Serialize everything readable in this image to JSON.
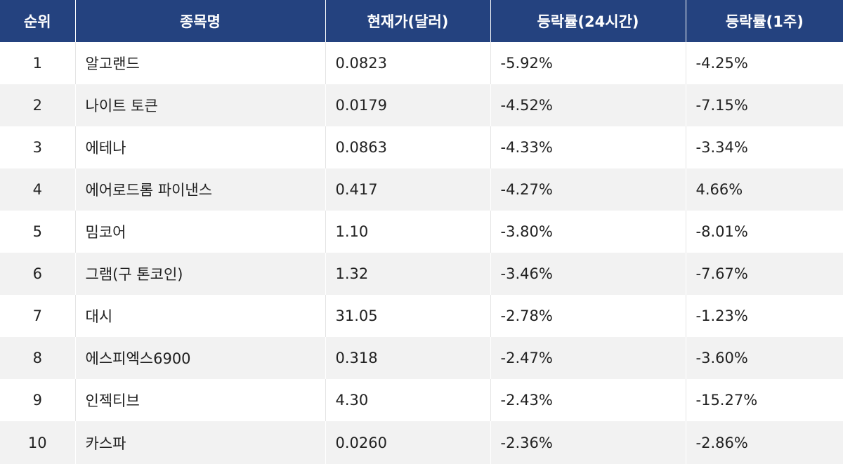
{
  "table": {
    "headers": {
      "rank": "순위",
      "name": "종목명",
      "price": "현재가(달러)",
      "change_24h": "등락률(24시간)",
      "change_1w": "등락률(1주)"
    },
    "rows": [
      {
        "rank": "1",
        "name": "알고랜드",
        "price": "0.0823",
        "change_24h": "-5.92%",
        "change_1w": "-4.25%"
      },
      {
        "rank": "2",
        "name": "나이트 토큰",
        "price": "0.0179",
        "change_24h": "-4.52%",
        "change_1w": "-7.15%"
      },
      {
        "rank": "3",
        "name": "에테나",
        "price": "0.0863",
        "change_24h": "-4.33%",
        "change_1w": "-3.34%"
      },
      {
        "rank": "4",
        "name": "에어로드롬 파이낸스",
        "price": "0.417",
        "change_24h": "-4.27%",
        "change_1w": "4.66%"
      },
      {
        "rank": "5",
        "name": "밈코어",
        "price": "1.10",
        "change_24h": "-3.80%",
        "change_1w": "-8.01%"
      },
      {
        "rank": "6",
        "name": "그램(구 톤코인)",
        "price": "1.32",
        "change_24h": "-3.46%",
        "change_1w": "-7.67%"
      },
      {
        "rank": "7",
        "name": "대시",
        "price": "31.05",
        "change_24h": "-2.78%",
        "change_1w": "-1.23%"
      },
      {
        "rank": "8",
        "name": "에스피엑스6900",
        "price": "0.318",
        "change_24h": "-2.47%",
        "change_1w": "-3.60%"
      },
      {
        "rank": "9",
        "name": "인젝티브",
        "price": "4.30",
        "change_24h": "-2.43%",
        "change_1w": "-15.27%"
      },
      {
        "rank": "10",
        "name": "카스파",
        "price": "0.0260",
        "change_24h": "-2.36%",
        "change_1w": "-2.86%"
      }
    ]
  },
  "colors": {
    "header_bg": "#24427f",
    "header_text": "#ffffff",
    "row_alt_bg": "#f2f2f2",
    "text": "#222222"
  }
}
